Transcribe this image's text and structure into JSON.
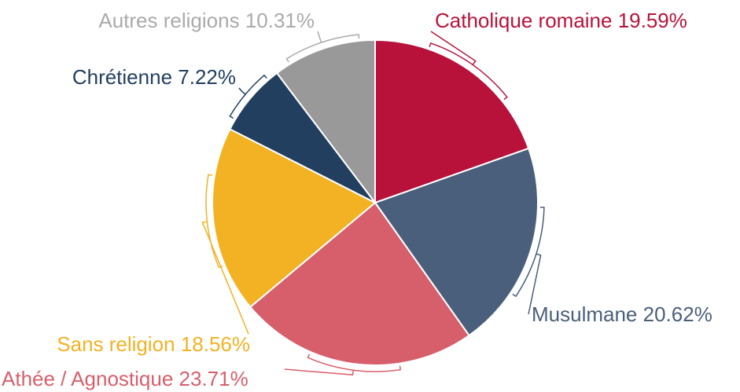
{
  "chart_data": {
    "type": "pie",
    "categories": [
      "Catholique romaine",
      "Musulmane",
      "Athée / Agnostique",
      "Sans religion",
      "Chrétienne",
      "Autres religions"
    ],
    "values": [
      19.59,
      20.62,
      23.71,
      18.56,
      7.22,
      10.31
    ],
    "value_labels": [
      "19.59%",
      "20.62%",
      "23.71%",
      "18.56%",
      "7.22%",
      "10.31%"
    ],
    "colors": [
      "#b8123a",
      "#4a5f7b",
      "#d65f6b",
      "#f2b223",
      "#233f60",
      "#999999"
    ]
  }
}
